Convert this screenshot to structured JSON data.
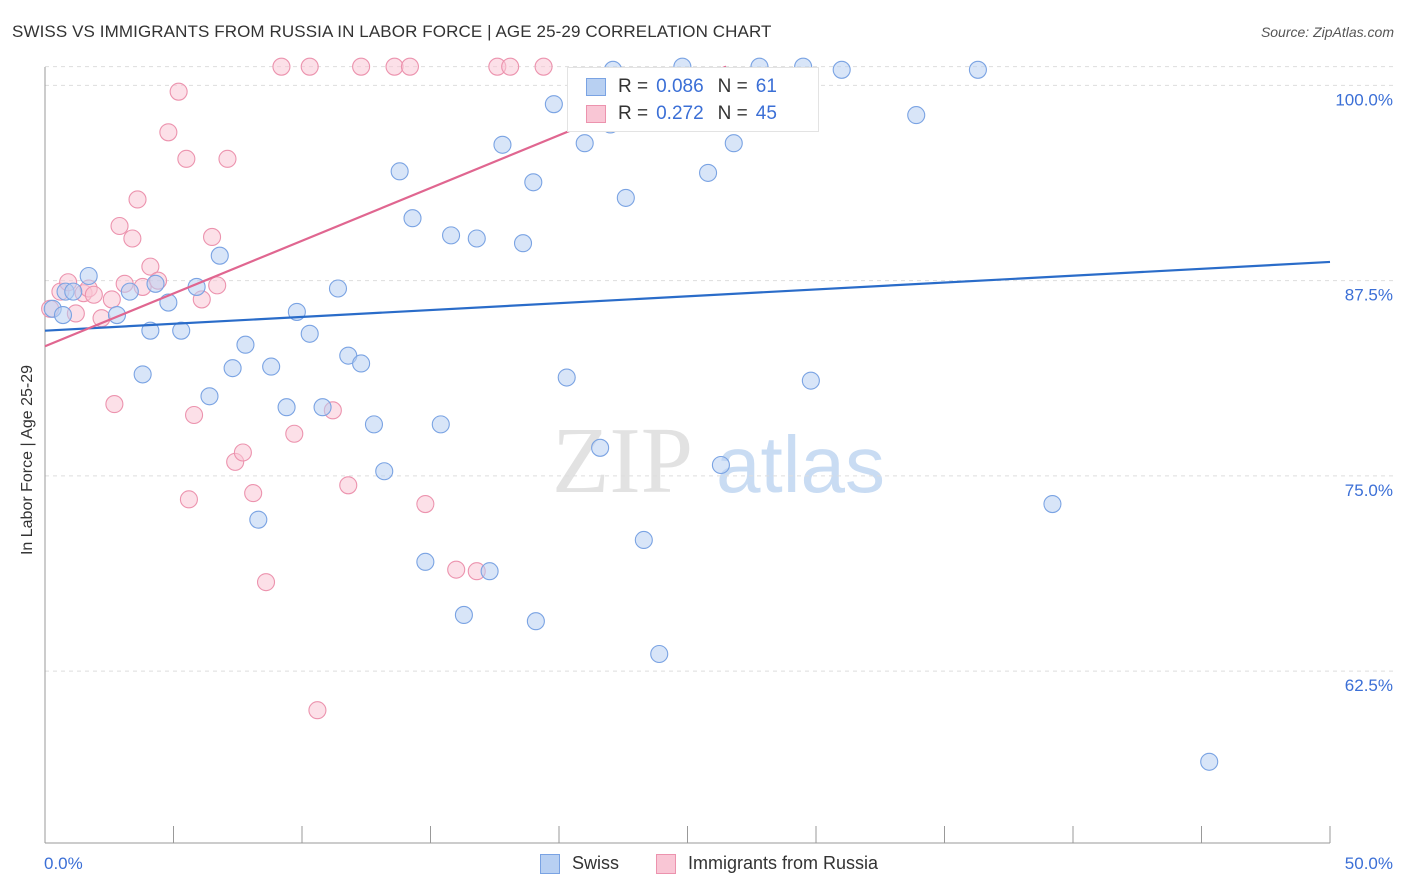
{
  "header": {
    "title": "SWISS VS IMMIGRANTS FROM RUSSIA IN LABOR FORCE | AGE 25-29 CORRELATION CHART",
    "source": "Source: ZipAtlas.com"
  },
  "watermark": {
    "part1": "ZIP",
    "part2": "atlas"
  },
  "legend": {
    "swiss": {
      "r_label": "R =",
      "r_value": "0.086",
      "n_label": "N =",
      "n_value": "61"
    },
    "russia": {
      "r_label": "R =",
      "r_value": "0.272",
      "n_label": "N =",
      "n_value": "45"
    }
  },
  "bottom_legend": {
    "swiss": "Swiss",
    "russia": "Immigrants from Russia"
  },
  "colors": {
    "swiss_fill": "#b8d0f2",
    "swiss_stroke": "#7aa3e3",
    "swiss_line": "#2a6cc9",
    "russia_fill": "#f9c6d5",
    "russia_stroke": "#ec93ae",
    "russia_line": "#e06690",
    "tick_label": "#3b6fd6",
    "grid": "#dddddd"
  },
  "chart_data": {
    "type": "scatter",
    "title": "SWISS VS IMMIGRANTS FROM RUSSIA IN LABOR FORCE | AGE 25-29 CORRELATION CHART",
    "xlabel": "",
    "ylabel": "In Labor Force | Age 25-29",
    "xlim": [
      0,
      50
    ],
    "ylim": [
      51.5,
      101.5
    ],
    "x_tick_labels": [
      "0.0%",
      "50.0%"
    ],
    "y_ticks": [
      62.5,
      75.0,
      87.5,
      100.0
    ],
    "y_tick_labels": [
      "62.5%",
      "75.0%",
      "87.5%",
      "100.0%"
    ],
    "series": [
      {
        "name": "Swiss",
        "r": 0.086,
        "n": 61,
        "trend": {
          "x0": 0,
          "y0": 84.3,
          "x1": 50,
          "y1": 88.7
        },
        "points": [
          [
            0.3,
            85.7
          ],
          [
            0.7,
            85.3
          ],
          [
            0.8,
            86.8
          ],
          [
            1.1,
            86.8
          ],
          [
            1.7,
            87.8
          ],
          [
            2.8,
            85.3
          ],
          [
            3.3,
            86.8
          ],
          [
            3.8,
            81.5
          ],
          [
            4.3,
            87.3
          ],
          [
            4.8,
            86.1
          ],
          [
            5.3,
            84.3
          ],
          [
            5.9,
            87.1
          ],
          [
            6.4,
            80.1
          ],
          [
            6.8,
            89.1
          ],
          [
            7.3,
            81.9
          ],
          [
            7.8,
            83.4
          ],
          [
            8.3,
            72.2
          ],
          [
            8.8,
            82.0
          ],
          [
            9.4,
            79.4
          ],
          [
            9.8,
            85.5
          ],
          [
            10.3,
            84.1
          ],
          [
            10.8,
            79.4
          ],
          [
            11.4,
            87.0
          ],
          [
            11.8,
            82.7
          ],
          [
            12.3,
            82.2
          ],
          [
            12.8,
            78.3
          ],
          [
            13.2,
            75.3
          ],
          [
            13.8,
            94.5
          ],
          [
            14.3,
            91.5
          ],
          [
            14.8,
            69.5
          ],
          [
            15.4,
            78.3
          ],
          [
            15.8,
            90.4
          ],
          [
            16.3,
            66.1
          ],
          [
            16.8,
            90.2
          ],
          [
            17.3,
            68.9
          ],
          [
            17.8,
            96.2
          ],
          [
            18.6,
            89.9
          ],
          [
            19.0,
            93.8
          ],
          [
            19.1,
            65.7
          ],
          [
            19.8,
            98.8
          ],
          [
            20.3,
            81.3
          ],
          [
            21.0,
            96.3
          ],
          [
            21.6,
            76.8
          ],
          [
            22.0,
            97.5
          ],
          [
            22.6,
            92.8
          ],
          [
            23.3,
            70.9
          ],
          [
            23.9,
            63.6
          ],
          [
            24.8,
            101.2
          ],
          [
            25.8,
            94.4
          ],
          [
            26.3,
            75.7
          ],
          [
            26.8,
            96.3
          ],
          [
            27.8,
            101.2
          ],
          [
            29.8,
            81.1
          ],
          [
            31.0,
            101.0
          ],
          [
            33.9,
            98.1
          ],
          [
            36.3,
            101.0
          ],
          [
            39.2,
            73.2
          ],
          [
            45.3,
            56.7
          ],
          [
            29.5,
            101.2
          ],
          [
            22.1,
            101.0
          ],
          [
            4.1,
            84.3
          ]
        ]
      },
      {
        "name": "Immigrants from Russia",
        "r": 0.272,
        "n": 45,
        "trend": {
          "x0": 0,
          "y0": 83.3,
          "x1": 26.5,
          "y1": 101.2
        },
        "points": [
          [
            0.2,
            85.7
          ],
          [
            0.6,
            86.8
          ],
          [
            0.9,
            87.4
          ],
          [
            1.2,
            85.4
          ],
          [
            1.5,
            86.7
          ],
          [
            1.7,
            87.0
          ],
          [
            1.9,
            86.6
          ],
          [
            2.2,
            85.1
          ],
          [
            2.6,
            86.3
          ],
          [
            2.7,
            79.6
          ],
          [
            2.9,
            91.0
          ],
          [
            3.1,
            87.3
          ],
          [
            3.4,
            90.2
          ],
          [
            3.6,
            92.7
          ],
          [
            3.8,
            87.1
          ],
          [
            4.1,
            88.4
          ],
          [
            4.4,
            87.5
          ],
          [
            4.8,
            97.0
          ],
          [
            5.2,
            99.6
          ],
          [
            5.5,
            95.3
          ],
          [
            5.8,
            78.9
          ],
          [
            6.1,
            86.3
          ],
          [
            6.5,
            90.3
          ],
          [
            6.7,
            87.2
          ],
          [
            7.1,
            95.3
          ],
          [
            7.4,
            75.9
          ],
          [
            7.7,
            76.5
          ],
          [
            8.1,
            73.9
          ],
          [
            8.6,
            68.2
          ],
          [
            9.2,
            101.2
          ],
          [
            9.7,
            77.7
          ],
          [
            10.3,
            101.2
          ],
          [
            10.6,
            60.0
          ],
          [
            11.2,
            79.2
          ],
          [
            11.8,
            74.4
          ],
          [
            12.3,
            101.2
          ],
          [
            13.6,
            101.2
          ],
          [
            14.2,
            101.2
          ],
          [
            14.8,
            73.2
          ],
          [
            16.0,
            69.0
          ],
          [
            16.8,
            68.9
          ],
          [
            17.6,
            101.2
          ],
          [
            18.1,
            101.2
          ],
          [
            19.4,
            101.2
          ],
          [
            5.6,
            73.5
          ]
        ]
      }
    ]
  }
}
